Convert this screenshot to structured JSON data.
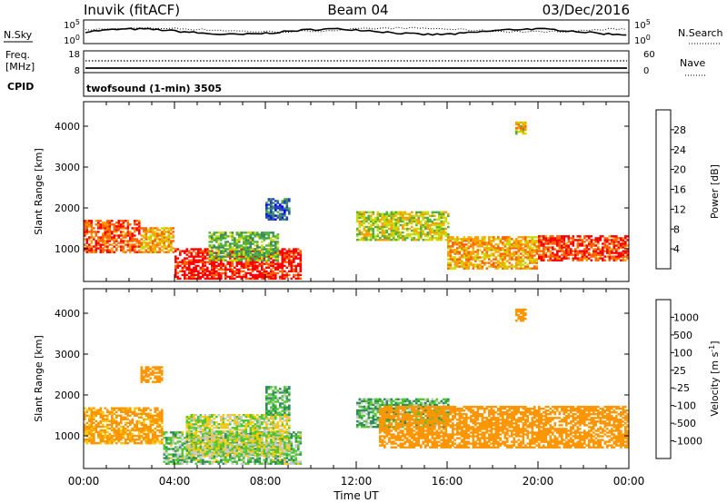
{
  "header": {
    "station": "Inuvik  (fitACF)",
    "beam": "Beam 04",
    "date": "03/Dec/2016"
  },
  "nsky_panel": {
    "left_label": "N.Sky",
    "left_ticks": [
      "10^5",
      "10^0"
    ],
    "right_label": "N.Search",
    "right_ticks": [
      "10^5",
      "10^0"
    ]
  },
  "freq_panel": {
    "label_line1": "Freq.",
    "label_line2": "[MHz]",
    "left_ticks": [
      "18",
      "8"
    ],
    "right_label": "Nave",
    "right_ticks": [
      "60",
      "0"
    ]
  },
  "cpid_panel": {
    "label": "CPID",
    "program": "twofsound (1-min) 3505"
  },
  "colors": {
    "power_scale": [
      "#0000ff",
      "#2040c8",
      "#3c8a64",
      "#50b040",
      "#c8dc00",
      "#ffa000",
      "#ff6400",
      "#ff0000"
    ],
    "velocity_scale": [
      "#0000ff",
      "#1e50c8",
      "#2e8c5a",
      "#50c832",
      "#c8c8c8",
      "#ffc800",
      "#ff9600",
      "#ff6e00",
      "#ff0000"
    ]
  },
  "chart_data": [
    {
      "type": "heatmap",
      "title": "",
      "xlabel": "Time UT",
      "ylabel": "Slant Range [km]",
      "xlim": [
        "00:00",
        "24:00"
      ],
      "ylim": [
        200,
        4600
      ],
      "x_ticks": [
        "00:00",
        "04:00",
        "08:00",
        "12:00",
        "16:00",
        "20:00",
        "00:00"
      ],
      "y_ticks": [
        "1000",
        "2000",
        "3000",
        "4000"
      ],
      "colorbar": {
        "label": "Power [dB]",
        "ticks": [
          "4",
          "8",
          "12",
          "16",
          "20",
          "24",
          "28"
        ],
        "range": [
          0,
          32
        ]
      },
      "echo_bands": [
        {
          "t_start": 0.0,
          "t_end": 2.5,
          "range_low": 900,
          "range_high": 1700,
          "value": 26
        },
        {
          "t_start": 2.5,
          "t_end": 4.0,
          "range_low": 900,
          "range_high": 1500,
          "value": 22
        },
        {
          "t_start": 4.0,
          "t_end": 9.5,
          "range_low": 250,
          "range_high": 1000,
          "value": 30
        },
        {
          "t_start": 5.5,
          "t_end": 8.5,
          "range_low": 700,
          "range_high": 1400,
          "value": 14
        },
        {
          "t_start": 12.0,
          "t_end": 16.0,
          "range_low": 1200,
          "range_high": 1900,
          "value": 18
        },
        {
          "t_start": 16.0,
          "t_end": 20.0,
          "range_low": 500,
          "range_high": 1300,
          "value": 22
        },
        {
          "t_start": 20.0,
          "t_end": 24.0,
          "range_low": 700,
          "range_high": 1300,
          "value": 28
        },
        {
          "t_start": 8.0,
          "t_end": 9.0,
          "range_low": 1700,
          "range_high": 2200,
          "value": 8
        },
        {
          "t_start": 19.0,
          "t_end": 19.5,
          "range_low": 3800,
          "range_high": 4100,
          "value": 20
        }
      ]
    },
    {
      "type": "heatmap",
      "title": "",
      "xlabel": "Time UT",
      "ylabel": "Slant Range [km]",
      "xlim": [
        "00:00",
        "24:00"
      ],
      "ylim": [
        200,
        4600
      ],
      "x_ticks": [
        "00:00",
        "04:00",
        "08:00",
        "12:00",
        "16:00",
        "20:00",
        "00:00"
      ],
      "y_ticks": [
        "1000",
        "2000",
        "3000",
        "4000"
      ],
      "colorbar": {
        "label": "Velocity [m s^-1]",
        "ticks": [
          "1000",
          "500",
          "100",
          "25",
          "-25",
          "-100",
          "-500",
          "-1000"
        ]
      },
      "echo_bands": [
        {
          "t_start": 0.0,
          "t_end": 3.5,
          "range_low": 800,
          "range_high": 1700,
          "value": -150
        },
        {
          "t_start": 3.5,
          "t_end": 9.5,
          "range_low": 300,
          "range_high": 1100,
          "value": 60
        },
        {
          "t_start": 4.5,
          "t_end": 9.0,
          "range_low": 500,
          "range_high": 1500,
          "value": 0
        },
        {
          "t_start": 12.0,
          "t_end": 16.0,
          "range_low": 1200,
          "range_high": 1900,
          "value": 80
        },
        {
          "t_start": 13.0,
          "t_end": 24.0,
          "range_low": 700,
          "range_high": 1700,
          "value": -300
        },
        {
          "t_start": 2.5,
          "t_end": 3.5,
          "range_low": 2300,
          "range_high": 2700,
          "value": -200
        },
        {
          "t_start": 8.0,
          "t_end": 9.0,
          "range_low": 1500,
          "range_high": 2200,
          "value": 80
        },
        {
          "t_start": 19.0,
          "t_end": 19.5,
          "range_low": 3800,
          "range_high": 4100,
          "value": -300
        }
      ]
    }
  ]
}
